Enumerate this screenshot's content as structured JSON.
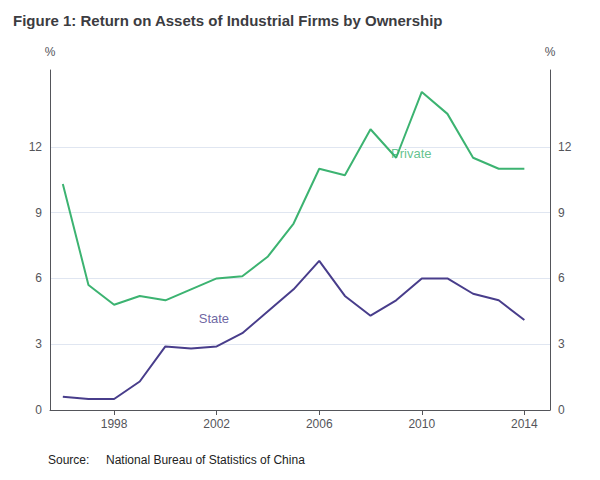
{
  "chart_data": {
    "type": "line",
    "title": "Figure 1: Return on Assets of Industrial Firms by Ownership",
    "source": "Source:     National Bureau of Statistics of China",
    "ylabel": "%",
    "y2label": "%",
    "series": [
      {
        "color": "#3CB371",
        "x": [
          1996,
          1997,
          1998,
          1999,
          2000,
          2001,
          2002,
          2003,
          2004,
          2005,
          2006,
          2007,
          2008,
          2009,
          2010,
          2011,
          2012,
          2013,
          2014
        ],
        "values": [
          10.3,
          5.7,
          4.8,
          5.2,
          5.0,
          5.5,
          6.0,
          6.1,
          7.0,
          8.5,
          11.0,
          10.7,
          12.8,
          11.5,
          14.5,
          13.5,
          11.5,
          11.0,
          11.0
        ]
      },
      {
        "color": "#483D8B",
        "x": [
          1996,
          1997,
          1998,
          1999,
          2000,
          2001,
          2002,
          2003,
          2004,
          2005,
          2006,
          2007,
          2008,
          2009,
          2010,
          2011,
          2012,
          2013,
          2014
        ],
        "values": [
          0.6,
          0.5,
          0.5,
          1.3,
          2.9,
          2.8,
          2.9,
          3.5,
          4.5,
          5.5,
          6.8,
          5.2,
          4.3,
          5.0,
          6.0,
          6.0,
          5.3,
          5.0,
          4.1
        ]
      }
    ],
    "annotations": [
      {
        "text": "Private",
        "x": 2008.8,
        "y": 11.7,
        "color": "#3CB371"
      },
      {
        "text": "State",
        "x": 2001.3,
        "y": 4.15,
        "color": "#483D8B"
      }
    ],
    "xlim": [
      1995.5,
      2015.0
    ],
    "xticks": [
      1998,
      2002,
      2006,
      2010,
      2014
    ],
    "ylim": [
      0,
      15.5
    ],
    "yticks": [
      0,
      3,
      6,
      9,
      12
    ],
    "y2lim": [
      0,
      15.5
    ],
    "y2ticks": [
      0,
      3,
      6,
      9,
      12
    ],
    "grid": true
  }
}
